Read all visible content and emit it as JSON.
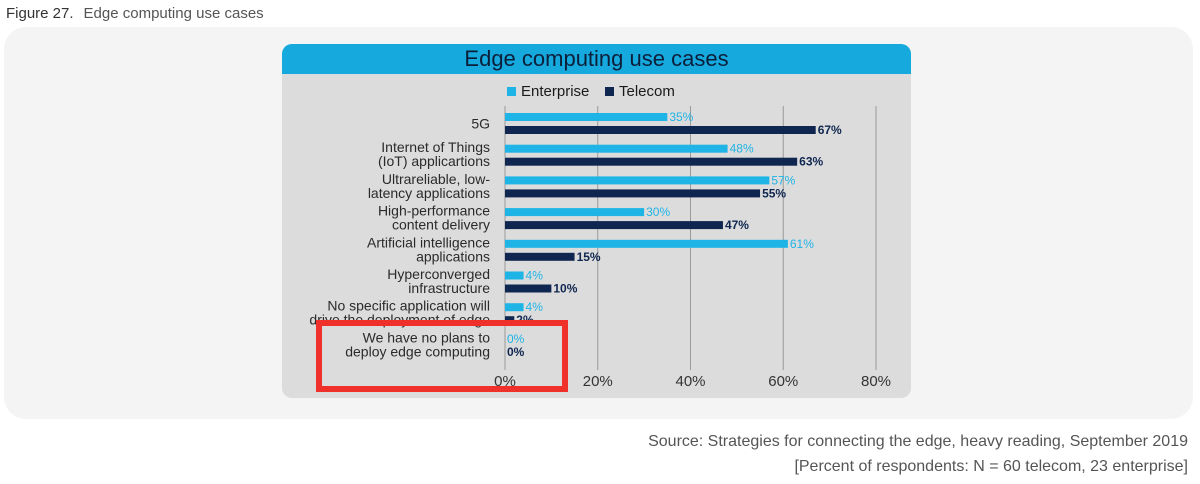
{
  "figure_caption": {
    "number": "Figure 27.",
    "text": "Edge computing use cases"
  },
  "source": {
    "line1": "Source: Strategies for connecting the edge, heavy reading, September 2019",
    "line2": "[Percent of respondents: N = 60 telecom, 23 enterprise]"
  },
  "colors": {
    "enterprise": "#1eb4e6",
    "telecom": "#0f2650",
    "title_band": "#16a9de",
    "highlight": "#f0312b"
  },
  "chart_data": {
    "type": "bar",
    "orientation": "horizontal",
    "title": "Edge computing use cases",
    "categories": [
      [
        "5G"
      ],
      [
        "Internet of Things",
        "(IoT) applicartions"
      ],
      [
        "Ultrareliable, low-",
        "latency applications"
      ],
      [
        "High-performance",
        "content delivery"
      ],
      [
        "Artificial intelligence",
        "applications"
      ],
      [
        "Hyperconverged",
        "infrastructure"
      ],
      [
        "No specific application will",
        "drive the deployment of edge"
      ],
      [
        "We have no plans to",
        "deploy edge computing"
      ]
    ],
    "series": [
      {
        "name": "Enterprise",
        "values": [
          35,
          48,
          57,
          30,
          61,
          4,
          4,
          0
        ]
      },
      {
        "name": "Telecom",
        "values": [
          67,
          63,
          55,
          47,
          15,
          10,
          2,
          0
        ]
      }
    ],
    "value_suffix": "%",
    "xlim": [
      0,
      80
    ],
    "xticks": [
      0,
      20,
      40,
      60,
      80
    ],
    "xtick_labels": [
      "0%",
      "20%",
      "40%",
      "60%",
      "80%"
    ],
    "grid": true,
    "legend_position": "top"
  }
}
